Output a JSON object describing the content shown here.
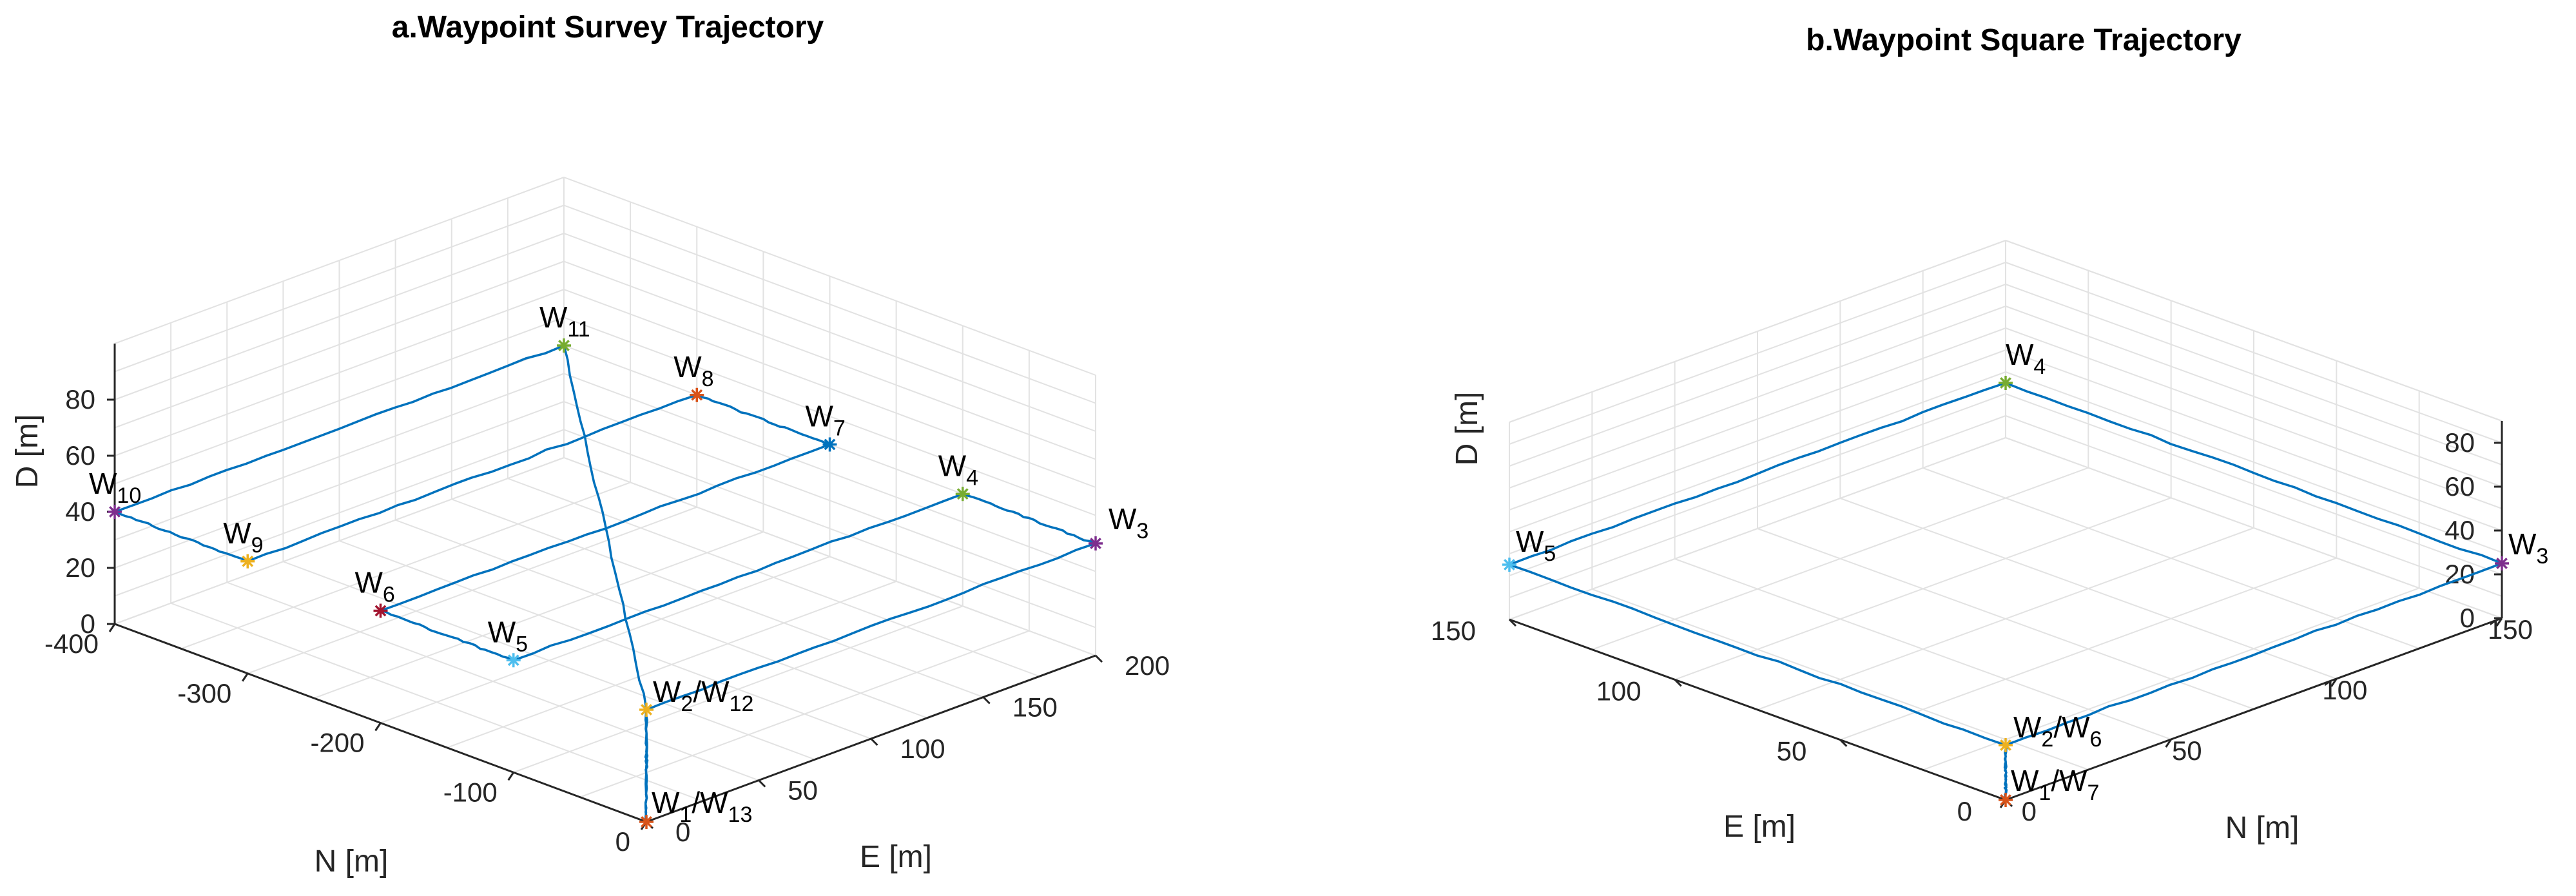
{
  "chart_data": [
    {
      "type": "line3d",
      "title": "a.Waypoint Survey Trajectory",
      "xlabel": "N [m]",
      "ylabel": "E [m]",
      "zlabel": "D [m]",
      "n_ticks": [
        "-400",
        "-300",
        "-200",
        "-100",
        "0"
      ],
      "e_ticks": [
        "0",
        "50",
        "100",
        "150",
        "200"
      ],
      "d_ticks": [
        "0",
        "20",
        "40",
        "60",
        "80"
      ],
      "xlim": [
        -400,
        0
      ],
      "ylim": [
        0,
        200
      ],
      "zlim": [
        0,
        80
      ],
      "grid": true,
      "waypoints": [
        {
          "label": "W",
          "sub": "1",
          "extra": "/W",
          "extra_sub": "13",
          "N": 0,
          "E": 0,
          "D": 0,
          "color": "#d95319"
        },
        {
          "label": "W",
          "sub": "2",
          "extra": "/W",
          "extra_sub": "12",
          "N": 0,
          "E": 0,
          "D": 40,
          "color": "#edb120"
        },
        {
          "label": "W",
          "sub": "3",
          "N": 0,
          "E": 200,
          "D": 40,
          "color": "#7e2f8e"
        },
        {
          "label": "W",
          "sub": "4",
          "N": -100,
          "E": 200,
          "D": 40,
          "color": "#77ac30"
        },
        {
          "label": "W",
          "sub": "5",
          "N": -100,
          "E": 0,
          "D": 40,
          "color": "#4dbeee"
        },
        {
          "label": "W",
          "sub": "6",
          "N": -200,
          "E": 0,
          "D": 40,
          "color": "#a2142f"
        },
        {
          "label": "W",
          "sub": "7",
          "N": -200,
          "E": 200,
          "D": 40,
          "color": "#0072bd"
        },
        {
          "label": "W",
          "sub": "8",
          "N": -300,
          "E": 200,
          "D": 40,
          "color": "#d95319"
        },
        {
          "label": "W",
          "sub": "9",
          "N": -300,
          "E": 0,
          "D": 40,
          "color": "#edb120"
        },
        {
          "label": "W",
          "sub": "10",
          "N": -400,
          "E": 0,
          "D": 40,
          "color": "#7e2f8e"
        },
        {
          "label": "W",
          "sub": "11",
          "N": -400,
          "E": 200,
          "D": 40,
          "color": "#77ac30"
        }
      ],
      "path_order": [
        0,
        1,
        2,
        3,
        4,
        5,
        6,
        7,
        8,
        9,
        10,
        1,
        0
      ],
      "line_color": "#0072bd"
    },
    {
      "type": "line3d",
      "title": "b.Waypoint Square Trajectory",
      "xlabel": "N [m]",
      "ylabel": "E [m]",
      "zlabel": "D [m]",
      "n_ticks": [
        "0",
        "50",
        "100",
        "150"
      ],
      "e_ticks": [
        "0",
        "50",
        "100",
        "150"
      ],
      "d_ticks": [
        "0",
        "20",
        "40",
        "60",
        "80"
      ],
      "xlim": [
        0,
        150
      ],
      "ylim": [
        0,
        150
      ],
      "zlim": [
        0,
        80
      ],
      "grid": true,
      "waypoints": [
        {
          "label": "W",
          "sub": "1",
          "extra": "/W",
          "extra_sub": "7",
          "N": 0,
          "E": 0,
          "D": 0,
          "color": "#d95319"
        },
        {
          "label": "W",
          "sub": "2",
          "extra": "/W",
          "extra_sub": "6",
          "N": 0,
          "E": 0,
          "D": 25,
          "color": "#edb120"
        },
        {
          "label": "W",
          "sub": "3",
          "N": 150,
          "E": 0,
          "D": 25,
          "color": "#7e2f8e"
        },
        {
          "label": "W",
          "sub": "4",
          "N": 150,
          "E": 150,
          "D": 25,
          "color": "#77ac30"
        },
        {
          "label": "W",
          "sub": "5",
          "N": 0,
          "E": 150,
          "D": 25,
          "color": "#4dbeee"
        }
      ],
      "path_order": [
        0,
        1,
        2,
        3,
        4,
        1,
        0
      ],
      "line_color": "#0072bd"
    }
  ]
}
